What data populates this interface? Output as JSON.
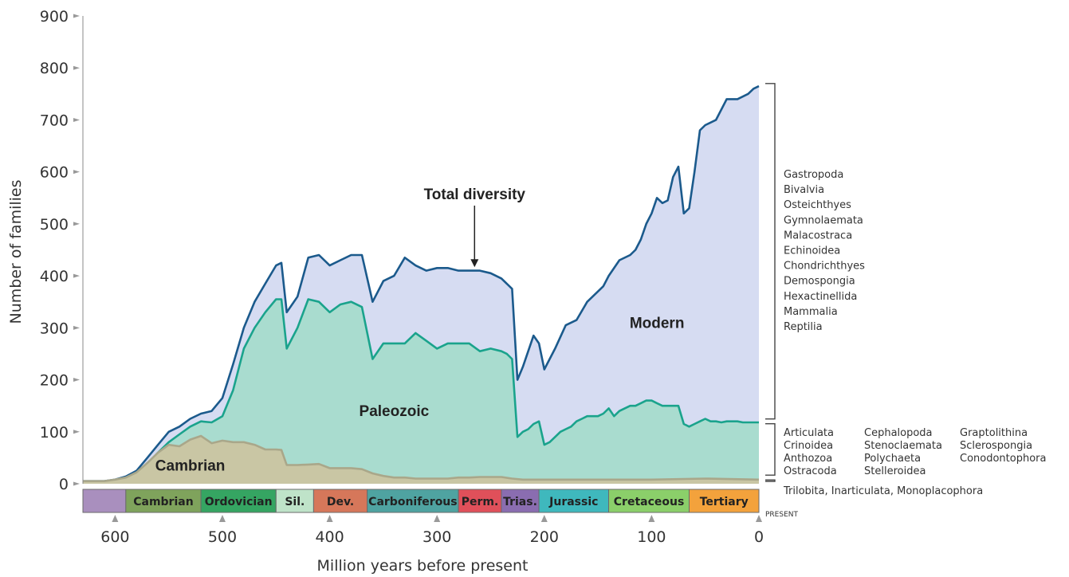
{
  "chart_data": {
    "type": "area",
    "xlabel": "Million years before present",
    "ylabel": "Number of families",
    "xlim": [
      630,
      0
    ],
    "ylim": [
      0,
      900
    ],
    "x_ticks": [
      "600",
      "500",
      "400",
      "300",
      "200",
      "100",
      "0"
    ],
    "x_tick_values": [
      600,
      500,
      400,
      300,
      200,
      100,
      0
    ],
    "y_ticks": [
      "0",
      "100",
      "200",
      "300",
      "400",
      "500",
      "600",
      "700",
      "800",
      "900"
    ],
    "y_tick_values": [
      0,
      100,
      200,
      300,
      400,
      500,
      600,
      700,
      800,
      900
    ],
    "present_label": "PRESENT",
    "annotation": {
      "text": "Total diversity",
      "x": 265,
      "y": 412
    },
    "region_labels": [
      {
        "text": "Cambrian",
        "x": 530,
        "y": 25
      },
      {
        "text": "Paleozoic",
        "x": 340,
        "y": 130
      },
      {
        "text": "Modern",
        "x": 95,
        "y": 300
      }
    ],
    "series": [
      {
        "name": "Cambrian",
        "color": "#c9c6a4",
        "line": "#a9a78a",
        "x": [
          630,
          610,
          600,
          590,
          580,
          570,
          560,
          550,
          540,
          530,
          520,
          510,
          500,
          490,
          480,
          470,
          460,
          450,
          445,
          440,
          430,
          420,
          410,
          400,
          390,
          380,
          370,
          360,
          350,
          340,
          330,
          320,
          310,
          300,
          290,
          280,
          270,
          260,
          250,
          240,
          230,
          220,
          210,
          200,
          150,
          100,
          50,
          0
        ],
        "y": [
          5,
          5,
          8,
          12,
          22,
          40,
          60,
          75,
          72,
          85,
          92,
          78,
          83,
          80,
          80,
          75,
          66,
          66,
          65,
          36,
          36,
          37,
          38,
          30,
          30,
          30,
          28,
          20,
          15,
          12,
          12,
          10,
          10,
          10,
          10,
          12,
          12,
          13,
          13,
          13,
          10,
          8,
          8,
          8,
          8,
          8,
          10,
          8
        ]
      },
      {
        "name": "Paleozoic",
        "color": "#a9dccf",
        "line": "#1aa38c",
        "x": [
          630,
          610,
          600,
          590,
          580,
          570,
          560,
          550,
          540,
          530,
          520,
          510,
          500,
          490,
          480,
          470,
          460,
          450,
          445,
          440,
          430,
          420,
          410,
          400,
          390,
          380,
          370,
          360,
          350,
          340,
          330,
          320,
          310,
          300,
          290,
          280,
          270,
          260,
          250,
          240,
          235,
          230,
          225,
          220,
          215,
          210,
          205,
          200,
          195,
          190,
          185,
          180,
          175,
          170,
          165,
          160,
          155,
          150,
          145,
          140,
          135,
          130,
          125,
          120,
          115,
          110,
          105,
          100,
          95,
          90,
          85,
          80,
          75,
          70,
          65,
          60,
          55,
          50,
          45,
          40,
          35,
          30,
          25,
          20,
          15,
          10,
          5,
          0
        ],
        "y": [
          4,
          4,
          6,
          10,
          18,
          38,
          60,
          80,
          95,
          110,
          120,
          118,
          130,
          180,
          260,
          300,
          330,
          355,
          355,
          260,
          300,
          355,
          350,
          330,
          345,
          350,
          340,
          240,
          270,
          270,
          270,
          290,
          275,
          260,
          270,
          270,
          270,
          255,
          260,
          255,
          250,
          240,
          90,
          100,
          105,
          115,
          120,
          75,
          80,
          90,
          100,
          105,
          110,
          120,
          125,
          130,
          130,
          130,
          135,
          145,
          130,
          140,
          145,
          150,
          150,
          155,
          160,
          160,
          155,
          150,
          150,
          150,
          150,
          115,
          110,
          115,
          120,
          125,
          120,
          120,
          118,
          120,
          120,
          120,
          118,
          118,
          118,
          118
        ]
      },
      {
        "name": "Modern",
        "color": "#d6dcf2",
        "line": "#1b5a8c",
        "x": [
          630,
          610,
          600,
          590,
          580,
          570,
          560,
          550,
          540,
          530,
          520,
          510,
          500,
          490,
          480,
          470,
          460,
          450,
          445,
          440,
          430,
          420,
          410,
          400,
          390,
          380,
          370,
          360,
          350,
          340,
          330,
          320,
          310,
          300,
          290,
          280,
          270,
          260,
          250,
          240,
          235,
          230,
          225,
          220,
          210,
          205,
          200,
          190,
          180,
          170,
          160,
          150,
          145,
          140,
          130,
          120,
          115,
          110,
          105,
          100,
          95,
          90,
          85,
          80,
          75,
          70,
          65,
          60,
          55,
          50,
          40,
          30,
          20,
          10,
          5,
          0
        ],
        "y": [
          5,
          5,
          8,
          14,
          25,
          50,
          75,
          100,
          110,
          125,
          135,
          140,
          165,
          230,
          300,
          350,
          385,
          420,
          425,
          330,
          360,
          435,
          440,
          420,
          430,
          440,
          440,
          350,
          390,
          400,
          435,
          420,
          410,
          415,
          415,
          410,
          410,
          410,
          405,
          395,
          385,
          375,
          200,
          225,
          285,
          270,
          220,
          260,
          305,
          315,
          350,
          370,
          380,
          400,
          430,
          440,
          450,
          470,
          500,
          520,
          550,
          540,
          545,
          590,
          610,
          520,
          530,
          600,
          680,
          690,
          700,
          740,
          740,
          750,
          760,
          765
        ]
      }
    ],
    "bracket_groups": [
      {
        "name": "Modern",
        "y_range": [
          120,
          770
        ],
        "classes": [
          "Gastropoda",
          "Bivalvia",
          "Osteichthyes",
          "Gymnolaemata",
          "Malacostraca",
          "Echinoidea",
          "Chondrichthyes",
          "Demospongia",
          "Hexactinellida",
          "Mammalia",
          "Reptilia"
        ]
      },
      {
        "name": "Paleozoic",
        "y_range": [
          12,
          120
        ],
        "classes": [
          "Articulata",
          "Crinoidea",
          "Anthozoa",
          "Ostracoda",
          "Cephalopoda",
          "Stenoclaemata",
          "Polychaeta",
          "Stelleroidea",
          "Graptolithina",
          "Sclerospongia",
          "Conodontophora"
        ]
      },
      {
        "name": "Cambrian",
        "y_range": [
          0,
          12
        ],
        "classes": [
          "Trilobita, Inarticulata, Monoplacophora"
        ]
      }
    ],
    "periods": [
      {
        "name": "",
        "start": 630,
        "end": 590,
        "color": "#a98fbe"
      },
      {
        "name": "Cambrian",
        "start": 590,
        "end": 520,
        "color": "#7fa35c"
      },
      {
        "name": "Ordovician",
        "start": 520,
        "end": 450,
        "color": "#35a562"
      },
      {
        "name": "Sil.",
        "start": 450,
        "end": 415,
        "color": "#bfe3c9"
      },
      {
        "name": "Dev.",
        "start": 415,
        "end": 365,
        "color": "#d6775a"
      },
      {
        "name": "Carboniferous",
        "start": 365,
        "end": 280,
        "color": "#4fa3a1"
      },
      {
        "name": "Perm.",
        "start": 280,
        "end": 240,
        "color": "#e0505a"
      },
      {
        "name": "Trias.",
        "start": 240,
        "end": 205,
        "color": "#8a6db0"
      },
      {
        "name": "Jurassic",
        "start": 205,
        "end": 140,
        "color": "#3fb8bd"
      },
      {
        "name": "Cretaceous",
        "start": 140,
        "end": 65,
        "color": "#8bcf6a"
      },
      {
        "name": "Tertiary",
        "start": 65,
        "end": 0,
        "color": "#f3a23c"
      }
    ]
  }
}
